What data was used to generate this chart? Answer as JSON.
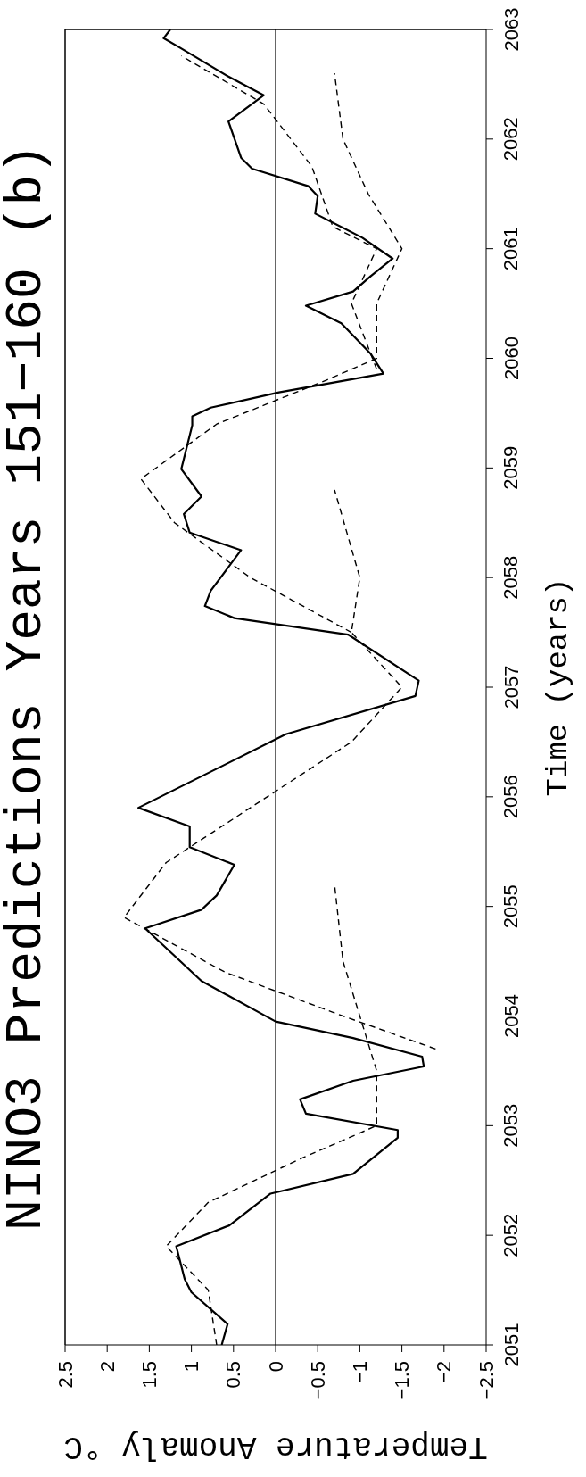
{
  "chart_data": {
    "type": "line",
    "title": "NINO3 Predictions Years 151−160 (b)",
    "xlabel": "Temperature Anomaly °C",
    "ylabel": "Time (years)",
    "xlim": [
      2.5,
      -2.5
    ],
    "xticks": [
      2.5,
      2,
      1.5,
      1,
      0.5,
      0,
      {
        "value": -0.5,
        "label": "−0.5"
      },
      {
        "value": -1,
        "label": "−1"
      },
      {
        "value": -1.5,
        "label": "−1.5"
      },
      {
        "value": -2,
        "label": "−2"
      },
      {
        "value": -2.5,
        "label": "−2.5"
      }
    ],
    "ylim": [
      2051,
      2063
    ],
    "yticks": [
      2051,
      2052,
      2053,
      2054,
      2055,
      2056,
      2057,
      2058,
      2059,
      2060,
      2061,
      2062,
      2063
    ],
    "grid": false,
    "legend": false,
    "ref_lines": [
      {
        "axis": "x",
        "value": 0,
        "color": "#000000"
      }
    ],
    "series": [
      {
        "color": "#000000",
        "line_style": "solid",
        "values": [
          2051,
          2051.19,
          2051.48,
          2051.6,
          2051.9,
          2052.09,
          2052.38,
          2052.56,
          2052.89,
          2052.96,
          2053.11,
          2053.24,
          2053.41,
          2053.54,
          2053.63,
          2053.8,
          2053.95,
          2054.32,
          2054.8,
          2054.97,
          2055.1,
          2055.38,
          2055.54,
          2055.73,
          2055.9,
          2056.57,
          2056.92,
          2057.06,
          2057.48,
          2057.63,
          2057.74,
          2057.88,
          2058.25,
          2058.41,
          2058.58,
          2058.74,
          2058.99,
          2059.39,
          2059.47,
          2059.55,
          2059.69,
          2059.86,
          2060.04,
          2060.32,
          2060.48,
          2060.61,
          2060.75,
          2060.91,
          2061.1,
          2061.32,
          2061.48,
          2061.57,
          2061.73,
          2061.83,
          2062.16,
          2062.4,
          2062.57,
          2062.84,
          2062.92,
          2063
        ],
        "x": [
          0.64,
          0.57,
          1.0,
          1.08,
          1.18,
          0.55,
          0.06,
          -0.92,
          -1.45,
          -1.45,
          -0.36,
          -0.29,
          -0.92,
          -1.76,
          -1.74,
          -0.92,
          0,
          0.88,
          1.55,
          0.88,
          0.7,
          0.49,
          1.02,
          1.02,
          1.63,
          -0.12,
          -1.66,
          -1.7,
          -0.86,
          0.49,
          0.84,
          0.77,
          0.41,
          1.02,
          1.09,
          0.88,
          1.12,
          0.99,
          0.99,
          0.77,
          -0.04,
          -1.28,
          -1.13,
          -0.78,
          -0.36,
          -0.92,
          -1.13,
          -1.39,
          -1.03,
          -0.47,
          -0.5,
          -0.39,
          0.28,
          0.41,
          0.56,
          0.14,
          0.56,
          1.15,
          1.33,
          1.25
        ]
      },
      {
        "color": "#000000",
        "line_style": "dashed",
        "values": [
          2051,
          2051.5,
          2051.9,
          2052.3,
          2052.7,
          2053,
          2053.5,
          2054,
          2054.5,
          2055.2
        ],
        "x": [
          0.7,
          0.8,
          1.3,
          0.8,
          -0.3,
          -1.2,
          -1.2,
          -1.0,
          -0.8,
          -0.7
        ]
      },
      {
        "color": "#000000",
        "line_style": "dashed",
        "values": [
          2053.7,
          2054,
          2054.4,
          2054.9,
          2055.4,
          2055.9,
          2056.5,
          2057,
          2057.5,
          2058,
          2058.8
        ],
        "x": [
          -1.9,
          -0.8,
          0.6,
          1.8,
          1.3,
          0.3,
          -0.9,
          -1.5,
          -0.9,
          -1.0,
          -0.7
        ]
      },
      {
        "color": "#000000",
        "line_style": "dashed",
        "values": [
          2057.5,
          2058,
          2058.5,
          2058.9,
          2059.4,
          2059.8,
          2060,
          2060.5,
          2061,
          2061.5,
          2062,
          2062.6
        ],
        "x": [
          -0.9,
          0.3,
          1.2,
          1.6,
          0.7,
          -0.6,
          -1.2,
          -1.2,
          -1.5,
          -1.1,
          -0.8,
          -0.7
        ]
      },
      {
        "color": "#000000",
        "line_style": "dashed",
        "values": [
          2059.9,
          2060.5,
          2061,
          2061.2,
          2061.75,
          2062.32,
          2062.76
        ],
        "x": [
          -1.2,
          -0.9,
          -1.2,
          -0.68,
          -0.43,
          0.14,
          1.12
        ]
      }
    ]
  }
}
